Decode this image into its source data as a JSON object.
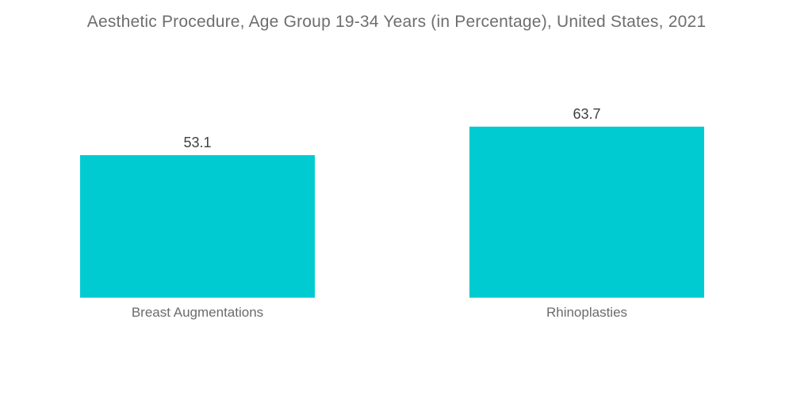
{
  "chart_data": {
    "type": "bar",
    "title": "Aesthetic Procedure, Age Group 19-34 Years (in Percentage), United States, 2021",
    "categories": [
      "Breast Augmentations",
      "Rhinoplasties"
    ],
    "values": [
      53.1,
      63.7
    ],
    "xlabel": "",
    "ylabel": "Percentage",
    "ylim": [
      0,
      70
    ],
    "grid": false,
    "legend": false,
    "data_labels": true,
    "bar_color": "#00cbd1",
    "title_color": "#6e6e6e",
    "value_label_color": "#3f3f3f",
    "category_label_color": "#6b6b6b",
    "background_color": "#ffffff"
  }
}
